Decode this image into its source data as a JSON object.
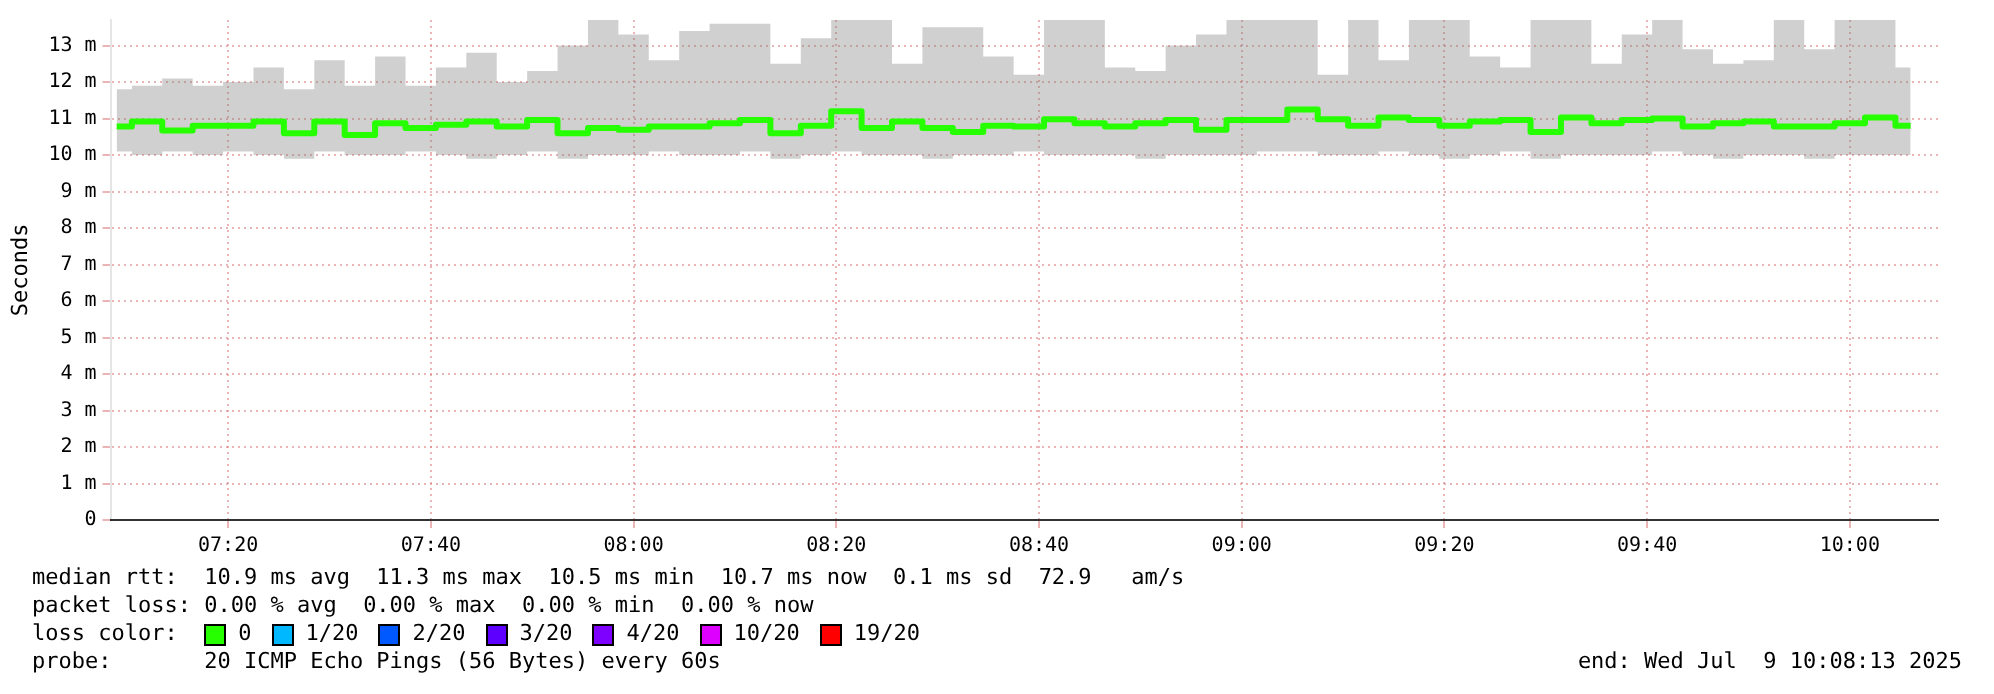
{
  "chart_data": {
    "type": "step",
    "ylabel": "Seconds",
    "legend_title": "loss color:",
    "legend": "bottom left",
    "grid": true,
    "marker": "none",
    "x": [
      7.15,
      7.2,
      7.25,
      7.3,
      7.35,
      7.4,
      7.45,
      7.5,
      7.55,
      7.6,
      7.65,
      7.7,
      7.75,
      7.8,
      7.85,
      7.9,
      7.95,
      8.0,
      8.05,
      8.1,
      8.15,
      8.2,
      8.25,
      8.3,
      8.35,
      8.4,
      8.45,
      8.5,
      8.55,
      8.6,
      8.65,
      8.7,
      8.75,
      8.8,
      8.85,
      8.9,
      8.95,
      9.0,
      9.05,
      9.1,
      9.15,
      9.2,
      9.25,
      9.3,
      9.35,
      9.4,
      9.45,
      9.5,
      9.55,
      9.6,
      9.65,
      9.7,
      9.75,
      9.8,
      9.85,
      9.9,
      9.95,
      10.0,
      10.05,
      10.1
    ],
    "series": [
      {
        "name": "0",
        "color": "#26ff00",
        "values": [
          10.78,
          10.92,
          10.67,
          10.8,
          10.8,
          10.92,
          10.6,
          10.92,
          10.55,
          10.87,
          10.74,
          10.83,
          10.92,
          10.78,
          10.96,
          10.6,
          10.74,
          10.69,
          10.78,
          10.78,
          10.87,
          10.96,
          10.6,
          10.8,
          11.2,
          10.74,
          10.92,
          10.74,
          10.63,
          10.8,
          10.78,
          10.98,
          10.87,
          10.78,
          10.87,
          10.96,
          10.69,
          10.96,
          10.96,
          11.25,
          10.98,
          10.8,
          11.03,
          10.96,
          10.8,
          10.92,
          10.96,
          10.63,
          11.03,
          10.87,
          10.96,
          11.0,
          10.78,
          10.87,
          10.92,
          10.78,
          10.78,
          10.87,
          11.03,
          10.8
        ],
        "lower": [
          10.1,
          10.0,
          10.1,
          10.0,
          10.1,
          10.0,
          9.9,
          10.1,
          10.0,
          10.0,
          10.1,
          10.0,
          9.9,
          10.0,
          10.1,
          9.9,
          10.0,
          10.0,
          10.1,
          10.0,
          10.0,
          10.1,
          9.9,
          10.0,
          10.1,
          10.0,
          10.0,
          9.9,
          10.0,
          10.0,
          10.1,
          10.0,
          10.0,
          10.0,
          9.9,
          10.0,
          10.0,
          10.0,
          10.1,
          10.1,
          10.0,
          10.0,
          10.1,
          10.0,
          9.9,
          10.0,
          10.1,
          9.9,
          10.0,
          10.0,
          10.0,
          10.1,
          10.0,
          9.9,
          10.0,
          10.0,
          9.9,
          10.0,
          10.0,
          10.0
        ],
        "upper": [
          11.8,
          11.9,
          12.1,
          11.9,
          12.0,
          12.4,
          11.8,
          12.6,
          11.9,
          12.7,
          11.9,
          12.4,
          12.8,
          12.0,
          12.3,
          13.0,
          13.7,
          13.3,
          12.6,
          13.4,
          13.6,
          13.6,
          12.5,
          13.2,
          13.7,
          13.7,
          12.5,
          13.5,
          13.5,
          12.7,
          12.2,
          13.7,
          13.7,
          12.4,
          12.3,
          13.0,
          13.3,
          13.7,
          13.7,
          13.7,
          12.2,
          13.7,
          12.6,
          13.7,
          13.7,
          12.7,
          12.4,
          13.7,
          13.7,
          12.5,
          13.3,
          13.7,
          12.9,
          12.5,
          12.6,
          13.7,
          12.9,
          13.7,
          13.7,
          12.4
        ]
      },
      {
        "name": "1/20",
        "color": "#00b8ff",
        "values": [
          null,
          null,
          null,
          null,
          null,
          null,
          null,
          null,
          null,
          null,
          null,
          null,
          null,
          null,
          null,
          null,
          null,
          null,
          null,
          null,
          null,
          null,
          null,
          null,
          null,
          null,
          null,
          null,
          null,
          null,
          null,
          null,
          null,
          null,
          null,
          null,
          null,
          null,
          null,
          null,
          null,
          null,
          null,
          null,
          null,
          null,
          null,
          null,
          null,
          null,
          null,
          null,
          null,
          null,
          null,
          null,
          null,
          null,
          null,
          null
        ]
      },
      {
        "name": "2/20",
        "color": "#0059ff",
        "values": [
          null,
          null,
          null,
          null,
          null,
          null,
          null,
          null,
          null,
          null,
          null,
          null,
          null,
          null,
          null,
          null,
          null,
          null,
          null,
          null,
          null,
          null,
          null,
          null,
          null,
          null,
          null,
          null,
          null,
          null,
          null,
          null,
          null,
          null,
          null,
          null,
          null,
          null,
          null,
          null,
          null,
          null,
          null,
          null,
          null,
          null,
          null,
          null,
          null,
          null,
          null,
          null,
          null,
          null,
          null,
          null,
          null,
          null,
          null,
          null
        ]
      },
      {
        "name": "3/20",
        "color": "#5e00ff",
        "values": [
          null,
          null,
          null,
          null,
          null,
          null,
          null,
          null,
          null,
          null,
          null,
          null,
          null,
          null,
          null,
          null,
          null,
          null,
          null,
          null,
          null,
          null,
          null,
          null,
          null,
          null,
          null,
          null,
          null,
          null,
          null,
          null,
          null,
          null,
          null,
          null,
          null,
          null,
          null,
          null,
          null,
          null,
          null,
          null,
          null,
          null,
          null,
          null,
          null,
          null,
          null,
          null,
          null,
          null,
          null,
          null,
          null,
          null,
          null,
          null
        ]
      },
      {
        "name": "4/20",
        "color": "#7e00ff",
        "values": [
          null,
          null,
          null,
          null,
          null,
          null,
          null,
          null,
          null,
          null,
          null,
          null,
          null,
          null,
          null,
          null,
          null,
          null,
          null,
          null,
          null,
          null,
          null,
          null,
          null,
          null,
          null,
          null,
          null,
          null,
          null,
          null,
          null,
          null,
          null,
          null,
          null,
          null,
          null,
          null,
          null,
          null,
          null,
          null,
          null,
          null,
          null,
          null,
          null,
          null,
          null,
          null,
          null,
          null,
          null,
          null,
          null,
          null,
          null,
          null
        ]
      },
      {
        "name": "10/20",
        "color": "#dd00ff",
        "values": [
          null,
          null,
          null,
          null,
          null,
          null,
          null,
          null,
          null,
          null,
          null,
          null,
          null,
          null,
          null,
          null,
          null,
          null,
          null,
          null,
          null,
          null,
          null,
          null,
          null,
          null,
          null,
          null,
          null,
          null,
          null,
          null,
          null,
          null,
          null,
          null,
          null,
          null,
          null,
          null,
          null,
          null,
          null,
          null,
          null,
          null,
          null,
          null,
          null,
          null,
          null,
          null,
          null,
          null,
          null,
          null,
          null,
          null,
          null,
          null
        ]
      },
      {
        "name": "19/20",
        "color": "#ff0000",
        "values": [
          null,
          null,
          null,
          null,
          null,
          null,
          null,
          null,
          null,
          null,
          null,
          null,
          null,
          null,
          null,
          null,
          null,
          null,
          null,
          null,
          null,
          null,
          null,
          null,
          null,
          null,
          null,
          null,
          null,
          null,
          null,
          null,
          null,
          null,
          null,
          null,
          null,
          null,
          null,
          null,
          null,
          null,
          null,
          null,
          null,
          null,
          null,
          null,
          null,
          null,
          null,
          null,
          null,
          null,
          null,
          null,
          null,
          null,
          null,
          null
        ]
      }
    ],
    "xlim": [
      7.14,
      10.145
    ],
    "xticks": [
      {
        "value": 7.3333,
        "label": "07:20"
      },
      {
        "value": 7.6667,
        "label": "07:40"
      },
      {
        "value": 8,
        "label": "08:00"
      },
      {
        "value": 8.3333,
        "label": "08:20"
      },
      {
        "value": 8.6667,
        "label": "08:40"
      },
      {
        "value": 9,
        "label": "09:00"
      },
      {
        "value": 9.3333,
        "label": "09:20"
      },
      {
        "value": 9.6667,
        "label": "09:40"
      },
      {
        "value": 10,
        "label": "10:00"
      }
    ],
    "ylim": [
      0,
      13.7
    ],
    "yticks": [
      0,
      {
        "value": 1,
        "label": "1 m"
      },
      {
        "value": 2,
        "label": "2 m"
      },
      {
        "value": 3,
        "label": "3 m"
      },
      {
        "value": 4,
        "label": "4 m"
      },
      {
        "value": 5,
        "label": "5 m"
      },
      {
        "value": 6,
        "label": "6 m"
      },
      {
        "value": 7,
        "label": "7 m"
      },
      {
        "value": 8,
        "label": "8 m"
      },
      {
        "value": 9,
        "label": "9 m"
      },
      {
        "value": 10,
        "label": "10 m"
      },
      {
        "value": 11,
        "label": "11 m"
      },
      {
        "value": 12,
        "label": "12 m"
      },
      {
        "value": 13,
        "label": "13 m"
      }
    ],
    "annotations": [
      "median rtt:  10.9 ms avg  11.3 ms max  10.5 ms min  10.7 ms now  0.1 ms sd  72.9   am/s",
      "packet loss: 0.00 % avg  0.00 % max  0.00 % min  0.00 % now",
      "probe:       20 ICMP Echo Pings (56 Bytes) every 60s",
      "end: Wed Jul  9 10:08:13 2025"
    ]
  }
}
